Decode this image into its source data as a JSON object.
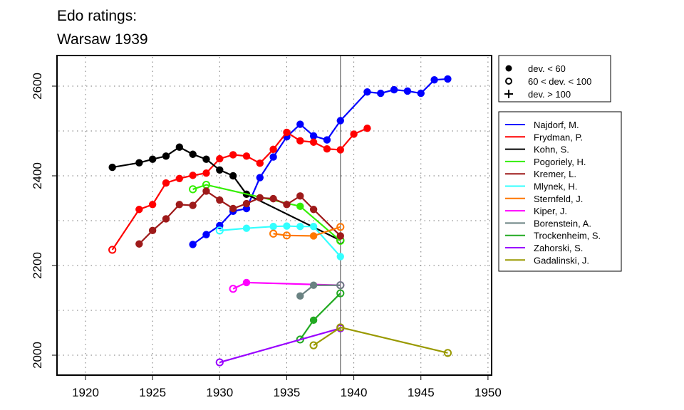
{
  "chart_data": {
    "type": "line",
    "title": [
      "Edo ratings:",
      "Warsaw 1939"
    ],
    "xlabel": "",
    "ylabel": "",
    "xlim": [
      1918,
      1951
    ],
    "ylim": [
      1957,
      2670
    ],
    "xticks": [
      1920,
      1925,
      1930,
      1935,
      1940,
      1945,
      1950
    ],
    "yticks": [
      2000,
      2200,
      2400,
      2600
    ],
    "grid": true,
    "reference_line_x": 1939,
    "marker_legend": [
      {
        "label": "dev. < 60",
        "marker": "filled"
      },
      {
        "label": "60 < dev. < 100",
        "marker": "open"
      },
      {
        "label": "dev. > 100",
        "marker": "plus"
      }
    ],
    "legend_position": "right",
    "series": [
      {
        "name": "Najdorf, M.",
        "color": "#0000ff",
        "points": [
          [
            1928,
            2247,
            "f"
          ],
          [
            1929,
            2269,
            "f"
          ],
          [
            1930,
            2289,
            "f"
          ],
          [
            1931,
            2321,
            "f"
          ],
          [
            1932,
            2327,
            "f"
          ],
          [
            1933,
            2396,
            "f"
          ],
          [
            1934,
            2442,
            "f"
          ],
          [
            1935,
            2487,
            "f"
          ],
          [
            1936,
            2515,
            "f"
          ],
          [
            1937,
            2489,
            "f"
          ],
          [
            1938,
            2480,
            "f"
          ],
          [
            1939,
            2523,
            "f"
          ],
          [
            1941,
            2587,
            "f"
          ],
          [
            1942,
            2584,
            "f"
          ],
          [
            1943,
            2592,
            "f"
          ],
          [
            1944,
            2589,
            "f"
          ],
          [
            1945,
            2584,
            "f"
          ],
          [
            1946,
            2614,
            "f"
          ],
          [
            1947,
            2616,
            "f"
          ]
        ]
      },
      {
        "name": "Frydman, P.",
        "color": "#ff0000",
        "points": [
          [
            1922,
            2235,
            "o"
          ],
          [
            1924,
            2325,
            "f"
          ],
          [
            1925,
            2336,
            "f"
          ],
          [
            1926,
            2384,
            "f"
          ],
          [
            1927,
            2394,
            "f"
          ],
          [
            1928,
            2401,
            "f"
          ],
          [
            1929,
            2406,
            "f"
          ],
          [
            1930,
            2438,
            "f"
          ],
          [
            1931,
            2447,
            "f"
          ],
          [
            1932,
            2444,
            "f"
          ],
          [
            1933,
            2428,
            "f"
          ],
          [
            1934,
            2459,
            "f"
          ],
          [
            1935,
            2497,
            "f"
          ],
          [
            1936,
            2478,
            "f"
          ],
          [
            1937,
            2475,
            "f"
          ],
          [
            1938,
            2460,
            "f"
          ],
          [
            1939,
            2458,
            "f"
          ],
          [
            1940,
            2493,
            "f"
          ],
          [
            1941,
            2506,
            "f"
          ]
        ]
      },
      {
        "name": "Kohn, S.",
        "color": "#000000",
        "points": [
          [
            1922,
            2419,
            "f"
          ],
          [
            1924,
            2429,
            "f"
          ],
          [
            1925,
            2437,
            "f"
          ],
          [
            1926,
            2444,
            "f"
          ],
          [
            1927,
            2464,
            "f"
          ],
          [
            1928,
            2448,
            "f"
          ],
          [
            1929,
            2437,
            "f"
          ],
          [
            1930,
            2413,
            "f"
          ],
          [
            1931,
            2400,
            "f"
          ],
          [
            1932,
            2359,
            "f"
          ],
          [
            1939,
            2256,
            "o"
          ]
        ]
      },
      {
        "name": "Pogoriely, H.",
        "color": "#33ee00",
        "points": [
          [
            1928,
            2370,
            "o"
          ],
          [
            1929,
            2380,
            "o"
          ],
          [
            1936,
            2332,
            "f"
          ],
          [
            1939,
            2255,
            "o"
          ]
        ]
      },
      {
        "name": "Kremer, L.",
        "color": "#9e1a1a",
        "points": [
          [
            1924,
            2248,
            "f"
          ],
          [
            1925,
            2278,
            "f"
          ],
          [
            1926,
            2304,
            "f"
          ],
          [
            1927,
            2336,
            "f"
          ],
          [
            1928,
            2334,
            "f"
          ],
          [
            1929,
            2366,
            "f"
          ],
          [
            1930,
            2346,
            "f"
          ],
          [
            1931,
            2327,
            "f"
          ],
          [
            1932,
            2338,
            "f"
          ],
          [
            1933,
            2351,
            "f"
          ],
          [
            1934,
            2349,
            "f"
          ],
          [
            1935,
            2336,
            "f"
          ],
          [
            1936,
            2355,
            "f"
          ],
          [
            1937,
            2325,
            "f"
          ],
          [
            1939,
            2266,
            "f"
          ]
        ]
      },
      {
        "name": "Mlynek, H.",
        "color": "#33ffff",
        "points": [
          [
            1930,
            2278,
            "o"
          ],
          [
            1932,
            2283,
            "f"
          ],
          [
            1934,
            2287,
            "f"
          ],
          [
            1935,
            2288,
            "f"
          ],
          [
            1936,
            2287,
            "f"
          ],
          [
            1937,
            2287,
            "f"
          ],
          [
            1939,
            2220,
            "f"
          ]
        ]
      },
      {
        "name": "Sternfeld, J.",
        "color": "#ff7700",
        "points": [
          [
            1934,
            2271,
            "o"
          ],
          [
            1935,
            2267,
            "o"
          ],
          [
            1937,
            2266,
            "f"
          ],
          [
            1939,
            2286,
            "o"
          ]
        ]
      },
      {
        "name": "Kiper, J.",
        "color": "#ff00ff",
        "points": [
          [
            1931,
            2148,
            "o"
          ],
          [
            1932,
            2162,
            "f"
          ],
          [
            1939,
            2156,
            "o"
          ]
        ]
      },
      {
        "name": "Borenstein, A.",
        "color": "#6a8282",
        "points": [
          [
            1936,
            2132,
            "f"
          ],
          [
            1937,
            2156,
            "f"
          ],
          [
            1939,
            2156,
            "o"
          ]
        ]
      },
      {
        "name": "Trockenheim, S.",
        "color": "#22aa22",
        "points": [
          [
            1936,
            2035,
            "o"
          ],
          [
            1937,
            2078,
            "f"
          ],
          [
            1939,
            2138,
            "o"
          ]
        ]
      },
      {
        "name": "Zahorski, S.",
        "color": "#9900ff",
        "points": [
          [
            1930,
            1984,
            "o"
          ],
          [
            1939,
            2060,
            "o"
          ]
        ]
      },
      {
        "name": "Gadalinski, J.",
        "color": "#999900",
        "points": [
          [
            1937,
            2022,
            "o"
          ],
          [
            1939,
            2062,
            "o"
          ],
          [
            1947,
            2005,
            "o"
          ]
        ]
      }
    ]
  }
}
